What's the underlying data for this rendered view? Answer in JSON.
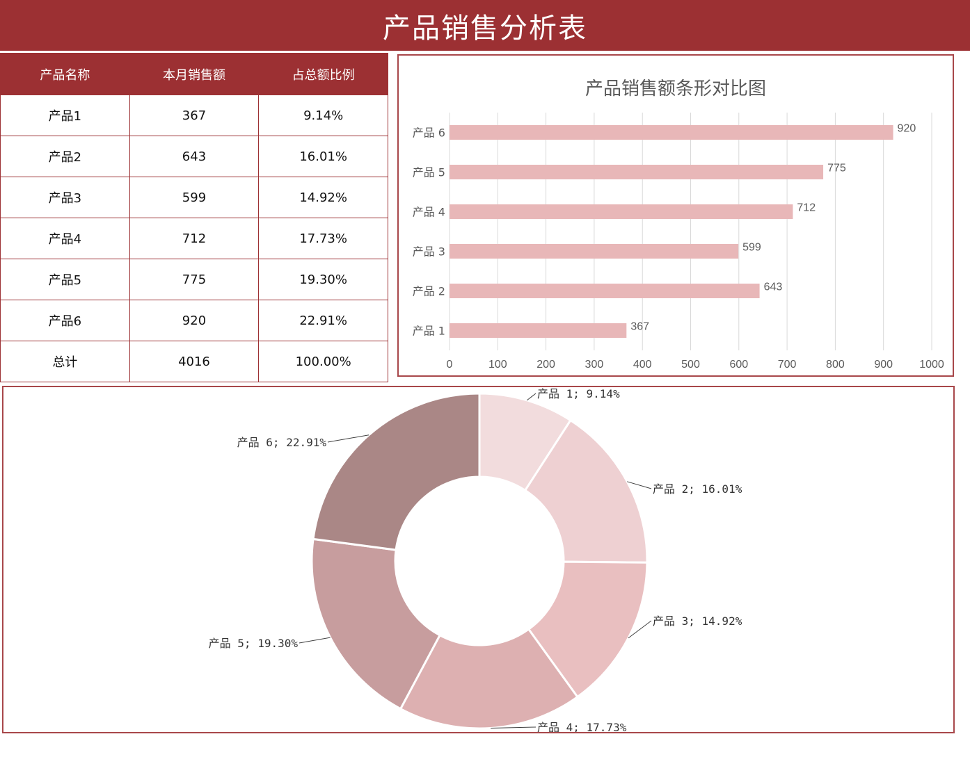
{
  "page": {
    "title": "产品销售分析表"
  },
  "table": {
    "headers": [
      "产品名称",
      "本月销售额",
      "占总额比例"
    ],
    "rows": [
      {
        "name": "产品1",
        "sales": "367",
        "ratio": "9.14%"
      },
      {
        "name": "产品2",
        "sales": "643",
        "ratio": "16.01%"
      },
      {
        "name": "产品3",
        "sales": "599",
        "ratio": "14.92%"
      },
      {
        "name": "产品4",
        "sales": "712",
        "ratio": "17.73%"
      },
      {
        "name": "产品5",
        "sales": "775",
        "ratio": "19.30%"
      },
      {
        "name": "产品6",
        "sales": "920",
        "ratio": "22.91%"
      }
    ],
    "total": {
      "name": "总计",
      "sales": "4016",
      "ratio": "100.00%"
    }
  },
  "colors": {
    "header_bg": "#9c3033",
    "bar_fill": "#e8b7b8",
    "pie_slices": [
      "#f2dcdd",
      "#eed0d2",
      "#e9bfc0",
      "#ddb0b1",
      "#c79d9e",
      "#aa8786"
    ]
  },
  "chart_data": [
    {
      "type": "bar",
      "orientation": "horizontal",
      "title": "产品销售额条形对比图",
      "categories": [
        "产品 1",
        "产品 2",
        "产品 3",
        "产品 4",
        "产品 5",
        "产品 6"
      ],
      "values": [
        367,
        643,
        599,
        712,
        775,
        920
      ],
      "xlim": [
        0,
        1000
      ],
      "xticks": [
        0,
        100,
        200,
        300,
        400,
        500,
        600,
        700,
        800,
        900,
        1000
      ],
      "grid": true,
      "data_labels": true
    },
    {
      "type": "pie",
      "style": "donut",
      "categories": [
        "产品 1",
        "产品 2",
        "产品 3",
        "产品 4",
        "产品 5",
        "产品 6"
      ],
      "values": [
        9.14,
        16.01,
        14.92,
        17.73,
        19.3,
        22.91
      ],
      "labels": [
        "产品 1; 9.14%",
        "产品 2; 16.01%",
        "产品 3; 14.92%",
        "产品 4; 17.73%",
        "产品 5; 19.30%",
        "产品 6; 22.91%"
      ]
    }
  ]
}
